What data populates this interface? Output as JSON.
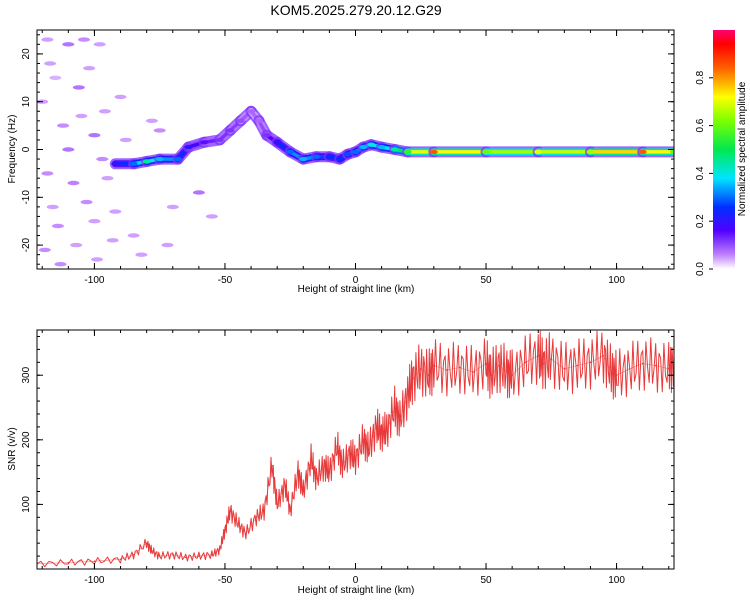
{
  "figure_title": "KOM5.2025.279.20.12.G29",
  "chart_data": [
    {
      "type": "heatmap",
      "title": "KOM5.2025.279.20.12.G29",
      "xlabel": "Height of straight line (km)",
      "ylabel": "Frequency (Hz)",
      "xlim": [
        -122,
        122
      ],
      "ylim": [
        -25,
        25
      ],
      "xticks": [
        -100,
        -50,
        0,
        50,
        100
      ],
      "yticks": [
        -20,
        -10,
        0,
        10,
        20
      ],
      "xtick_labels": [
        "-100",
        "-50",
        "0",
        "50",
        "100"
      ],
      "ytick_labels": [
        "-20",
        "-10",
        "0",
        "10",
        "20"
      ],
      "colorbar": {
        "label": "Normalized spectral amplitude",
        "range": [
          0,
          1
        ],
        "ticks": [
          0,
          0.2,
          0.4,
          0.6,
          0.8
        ],
        "tick_labels": [
          "0.0",
          "0.2",
          "0.4",
          "0.6",
          "0.8"
        ],
        "colormap": "rainbow (purple-blue-cyan-green-yellow-red-magenta)"
      },
      "ridge": {
        "description": "dominant spectral line frequency vs height",
        "x": [
          -92,
          -85,
          -80,
          -75,
          -68,
          -64,
          -58,
          -52,
          -48,
          -44,
          -40,
          -37,
          -34,
          -30,
          -25,
          -20,
          -15,
          -10,
          -6,
          -3,
          0,
          3,
          6,
          10,
          15,
          20,
          30,
          50,
          70,
          90,
          110,
          122
        ],
        "y": [
          -3,
          -3,
          -2.5,
          -2,
          -2,
          0.5,
          1.5,
          2,
          4,
          6,
          8,
          6,
          3,
          1.5,
          -0.5,
          -2,
          -1.5,
          -1.5,
          -2,
          -1,
          -0.5,
          0.5,
          1,
          0.5,
          0,
          -0.5,
          -0.5,
          -0.5,
          -0.5,
          -0.5,
          -0.5,
          -0.5
        ],
        "amplitude": [
          0.2,
          0.3,
          0.45,
          0.35,
          0.3,
          0.2,
          0.15,
          0.12,
          0.12,
          0.1,
          0.08,
          0.08,
          0.12,
          0.2,
          0.3,
          0.35,
          0.3,
          0.25,
          0.25,
          0.28,
          0.3,
          0.35,
          0.4,
          0.35,
          0.45,
          0.55,
          0.85,
          0.6,
          0.7,
          0.65,
          0.85,
          0.6
        ]
      },
      "scatter_noise": {
        "description": "weak speckle at low heights",
        "x": [
          -118,
          -110,
          -104,
          -98,
          -115,
          -106,
          -96,
          -112,
          -100,
          -88,
          -118,
          -108,
          -95,
          -116,
          -103,
          -92,
          -114,
          -100,
          -85,
          -119,
          -107,
          -93,
          -113,
          -99,
          -82,
          -117,
          -102,
          -90,
          -60,
          -75,
          -78,
          -70,
          -55,
          -110,
          -97,
          -120,
          -105,
          -89,
          -72
        ],
        "y": [
          23,
          22,
          23,
          22,
          15,
          13,
          8,
          5,
          3,
          2,
          -5,
          -7,
          -6,
          -12,
          -11,
          -13,
          -16,
          -15,
          -18,
          -21,
          -20,
          -19,
          -24,
          -23,
          -22,
          18,
          17,
          11,
          -9,
          4,
          6,
          -12,
          -14,
          0,
          -2,
          10,
          7,
          -3,
          -20
        ],
        "amplitude": [
          0.05,
          0.08,
          0.06,
          0.05,
          0.04,
          0.08,
          0.05,
          0.06,
          0.08,
          0.05,
          0.06,
          0.07,
          0.05,
          0.05,
          0.06,
          0.05,
          0.06,
          0.05,
          0.05,
          0.06,
          0.05,
          0.05,
          0.06,
          0.05,
          0.05,
          0.05,
          0.05,
          0.05,
          0.08,
          0.06,
          0.05,
          0.05,
          0.05,
          0.08,
          0.06,
          0.05,
          0.05,
          0.06,
          0.05
        ]
      }
    },
    {
      "type": "line",
      "title": "",
      "xlabel": "Height of straight line (km)",
      "ylabel": "SNR (v/v)",
      "xlim": [
        -122,
        122
      ],
      "ylim": [
        0,
        370
      ],
      "xticks": [
        -100,
        -50,
        0,
        50,
        100
      ],
      "yticks": [
        100,
        200,
        300
      ],
      "xtick_labels": [
        "-100",
        "-50",
        "0",
        "50",
        "100"
      ],
      "ytick_labels": [
        "100",
        "200",
        "300"
      ],
      "series": [
        {
          "name": "SNR",
          "color": "#e83a3a",
          "x": [
            -122,
            -110,
            -100,
            -90,
            -85,
            -80,
            -78,
            -75,
            -70,
            -65,
            -60,
            -55,
            -52,
            -50,
            -48,
            -45,
            -42,
            -38,
            -35,
            -32,
            -30,
            -27,
            -25,
            -22,
            -20,
            -17,
            -15,
            -12,
            -10,
            -7,
            -5,
            -2,
            0,
            3,
            5,
            8,
            10,
            12,
            15,
            17,
            20,
            22,
            25,
            28,
            30,
            35,
            40,
            45,
            50,
            52,
            55,
            58,
            60,
            65,
            70,
            72,
            75,
            80,
            85,
            90,
            95,
            98,
            100,
            105,
            110,
            115,
            120,
            122
          ],
          "y": [
            8,
            10,
            12,
            15,
            22,
            40,
            28,
            20,
            22,
            18,
            20,
            22,
            30,
            60,
            90,
            70,
            55,
            80,
            90,
            160,
            100,
            130,
            90,
            150,
            120,
            170,
            140,
            160,
            150,
            190,
            160,
            180,
            170,
            200,
            185,
            220,
            210,
            215,
            250,
            230,
            270,
            295,
            310,
            300,
            315,
            308,
            312,
            305,
            318,
            300,
            315,
            305,
            300,
            320,
            330,
            318,
            325,
            310,
            315,
            320,
            330,
            305,
            300,
            310,
            318,
            315,
            310,
            320
          ]
        }
      ]
    }
  ]
}
